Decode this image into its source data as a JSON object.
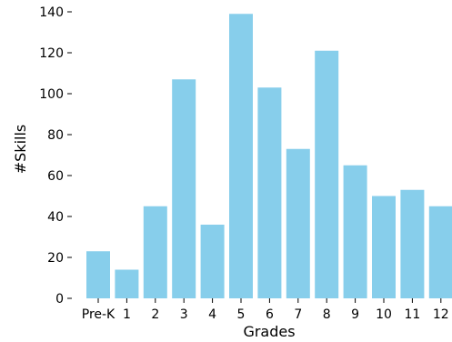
{
  "chart_data": {
    "type": "bar",
    "categories": [
      "Pre-K",
      "1",
      "2",
      "3",
      "4",
      "5",
      "6",
      "7",
      "8",
      "9",
      "10",
      "11",
      "12"
    ],
    "values": [
      23,
      14,
      45,
      107,
      36,
      139,
      103,
      73,
      121,
      65,
      50,
      53,
      45
    ],
    "xlabel": "Grades",
    "ylabel": "#Skills",
    "ylim": [
      0,
      146
    ],
    "yticks": [
      0,
      20,
      40,
      60,
      80,
      100,
      120,
      140
    ],
    "bar_color": "#87CEEB",
    "grid": false,
    "legend": "none"
  }
}
